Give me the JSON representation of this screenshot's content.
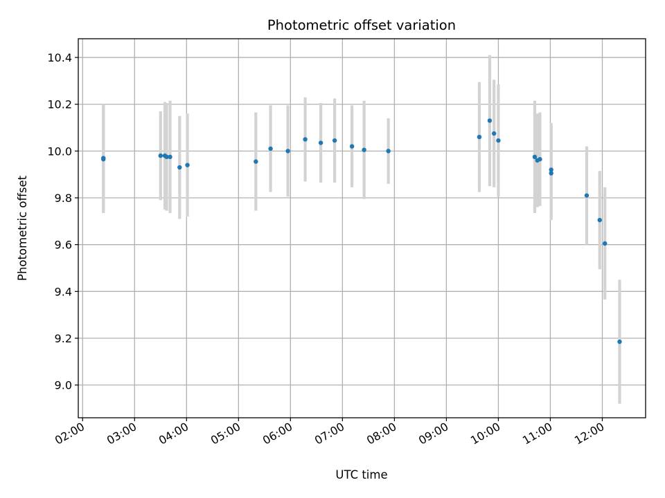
{
  "chart_data": {
    "type": "scatter",
    "title": "Photometric offset variation",
    "xlabel": "UTC time",
    "ylabel": "Photometric offset",
    "x_unit": "hours UTC",
    "xlim": [
      "01:55",
      "12:50"
    ],
    "ylim": [
      8.86,
      10.48
    ],
    "x_ticks": [
      "02:00",
      "03:00",
      "04:00",
      "05:00",
      "06:00",
      "07:00",
      "08:00",
      "09:00",
      "10:00",
      "11:00",
      "12:00"
    ],
    "y_ticks": [
      "9.0",
      "9.2",
      "9.4",
      "9.6",
      "9.8",
      "10.0",
      "10.2",
      "10.4"
    ],
    "grid": true,
    "series": [
      {
        "marker_color": "#1f77b4",
        "errorbar_color": "#d3d3d3",
        "points": [
          {
            "time": "02:24",
            "y": 9.97,
            "err": 0.23
          },
          {
            "time": "02:24",
            "y": 9.965,
            "err": 0.23
          },
          {
            "time": "03:30",
            "y": 9.98,
            "err": 0.19
          },
          {
            "time": "03:35",
            "y": 9.98,
            "err": 0.23
          },
          {
            "time": "03:37",
            "y": 9.975,
            "err": 0.23
          },
          {
            "time": "03:41",
            "y": 9.975,
            "err": 0.24
          },
          {
            "time": "03:52",
            "y": 9.93,
            "err": 0.22
          },
          {
            "time": "04:01",
            "y": 9.94,
            "err": 0.22
          },
          {
            "time": "05:20",
            "y": 9.955,
            "err": 0.21
          },
          {
            "time": "05:37",
            "y": 10.01,
            "err": 0.185
          },
          {
            "time": "05:57",
            "y": 10.0,
            "err": 0.195
          },
          {
            "time": "06:17",
            "y": 10.05,
            "err": 0.18
          },
          {
            "time": "06:35",
            "y": 10.035,
            "err": 0.17
          },
          {
            "time": "06:51",
            "y": 10.045,
            "err": 0.18
          },
          {
            "time": "07:11",
            "y": 10.02,
            "err": 0.175
          },
          {
            "time": "07:25",
            "y": 10.005,
            "err": 0.21
          },
          {
            "time": "07:53",
            "y": 10.0,
            "err": 0.14
          },
          {
            "time": "09:38",
            "y": 10.06,
            "err": 0.235
          },
          {
            "time": "09:50",
            "y": 10.13,
            "err": 0.28
          },
          {
            "time": "09:55",
            "y": 10.075,
            "err": 0.23
          },
          {
            "time": "10:00",
            "y": 10.045,
            "err": 0.24
          },
          {
            "time": "10:42",
            "y": 9.975,
            "err": 0.24
          },
          {
            "time": "10:45",
            "y": 9.96,
            "err": 0.2
          },
          {
            "time": "10:48",
            "y": 9.965,
            "err": 0.2
          },
          {
            "time": "11:01",
            "y": 9.92,
            "err": 0.2
          },
          {
            "time": "11:01",
            "y": 9.905,
            "err": 0.2
          },
          {
            "time": "11:42",
            "y": 9.81,
            "err": 0.21
          },
          {
            "time": "11:57",
            "y": 9.705,
            "err": 0.21
          },
          {
            "time": "12:03",
            "y": 9.605,
            "err": 0.24
          },
          {
            "time": "12:20",
            "y": 9.185,
            "err": 0.265
          }
        ]
      }
    ]
  }
}
